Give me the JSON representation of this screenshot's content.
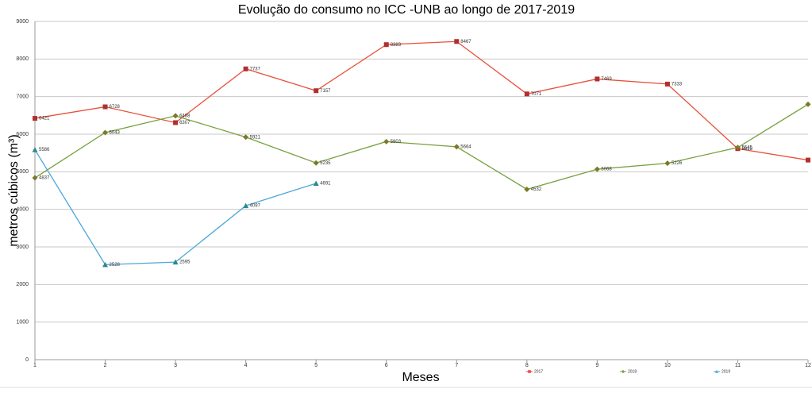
{
  "chart_data": {
    "type": "line",
    "title": "Evolução do consumo no ICC -UNB ao longo de 2017-2019",
    "x_label": "Meses",
    "y_label": "metros cúbicos (m³)",
    "x": [
      1,
      2,
      3,
      4,
      5,
      6,
      7,
      8,
      9,
      10,
      11,
      12
    ],
    "xlim": [
      1,
      12
    ],
    "xticks": [
      1,
      2,
      3,
      4,
      5,
      6,
      7,
      8,
      9,
      10,
      11,
      12
    ],
    "ylim": [
      0,
      9000
    ],
    "yticks": [
      0,
      1000,
      2000,
      3000,
      4000,
      5000,
      6000,
      7000,
      8000,
      9000
    ],
    "grid": true,
    "legend": "bottom",
    "series": [
      {
        "name": "2017",
        "color": "#e8503a",
        "marker_color": "#b03030",
        "marker": "square",
        "values": [
          6421,
          6728,
          6307,
          7737,
          7157,
          8383,
          8467,
          7071,
          7469,
          7333,
          5615,
          5311
        ]
      },
      {
        "name": "2018",
        "color": "#77a03c",
        "marker_color": "#7a7a28",
        "marker": "diamond",
        "values": [
          4837,
          6043,
          6488,
          5921,
          5235,
          5803,
          5664,
          4532,
          5068,
          5226,
          5645,
          6796
        ]
      },
      {
        "name": "2019",
        "color": "#4aa8d8",
        "marker_color": "#2a8a8a",
        "marker": "triangle",
        "values": [
          5586,
          2528,
          2595,
          4097,
          4691,
          null,
          null,
          null,
          null,
          null,
          null,
          null
        ]
      }
    ]
  }
}
